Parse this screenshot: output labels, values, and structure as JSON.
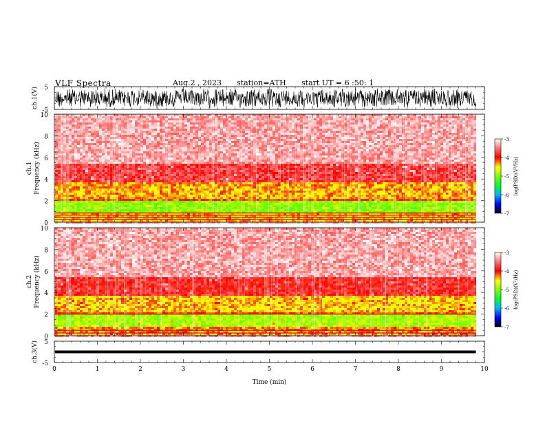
{
  "header": {
    "title": "VLF Spectra",
    "date": "Aug.2 , 2023",
    "station": "station=ATH",
    "start": "start UT =  6 :50: 1"
  },
  "chart_data": [
    {
      "type": "line",
      "name": "ch1-waveform",
      "ylabel": "ch.1(V)",
      "ylim": [
        -5,
        5
      ],
      "yticks": [
        "5",
        "-5"
      ],
      "xlim": [
        0,
        10
      ]
    },
    {
      "type": "heatmap",
      "name": "ch1-spectrogram",
      "ylabel": "ch.1\nFrequency (kHz)",
      "ylabel_lines": [
        "ch.1",
        "Frequency (kHz)"
      ],
      "ylim": [
        0,
        10
      ],
      "yticks": [
        "0",
        "2",
        "4",
        "6",
        "8",
        "10"
      ],
      "xlim": [
        0,
        10
      ],
      "data_end_min": 9.8,
      "colorbar": {
        "label": "log(PSD)(V²/Hz)",
        "range": [
          -7,
          -3
        ],
        "ticks": [
          "-3",
          "-4",
          "-5",
          "-6",
          "-7"
        ]
      },
      "bands": [
        {
          "f0": 0.0,
          "f1": 0.8,
          "level": -4.4
        },
        {
          "f0": 0.8,
          "f1": 1.9,
          "level": -4.95
        },
        {
          "f0": 1.9,
          "f1": 2.2,
          "level": -4.1
        },
        {
          "f0": 2.2,
          "f1": 3.6,
          "level": -4.35
        },
        {
          "f0": 3.6,
          "f1": 5.5,
          "level": -3.75
        },
        {
          "f0": 5.5,
          "f1": 10.0,
          "level": -3.35
        }
      ],
      "lines_khz": [
        0.25,
        0.45,
        0.65,
        0.85
      ]
    },
    {
      "type": "heatmap",
      "name": "ch2-spectrogram",
      "ylabel": "ch.2\nFrequency (kHz)",
      "ylabel_lines": [
        "ch.2",
        "Frequency (kHz)"
      ],
      "ylim": [
        0,
        10
      ],
      "yticks": [
        "0",
        "2",
        "4",
        "6",
        "8",
        "10"
      ],
      "xlim": [
        0,
        10
      ],
      "data_end_min": 9.8,
      "colorbar": {
        "label": "log(PSD)(V²/Hz)",
        "range": [
          -7,
          -3
        ],
        "ticks": [
          "-3",
          "-4",
          "-5",
          "-6",
          "-7"
        ]
      },
      "bands": [
        {
          "f0": 0.0,
          "f1": 0.8,
          "level": -4.3
        },
        {
          "f0": 0.8,
          "f1": 1.9,
          "level": -4.85
        },
        {
          "f0": 1.9,
          "f1": 2.2,
          "level": -4.1
        },
        {
          "f0": 2.2,
          "f1": 3.6,
          "level": -4.4
        },
        {
          "f0": 3.6,
          "f1": 5.5,
          "level": -3.85
        },
        {
          "f0": 5.5,
          "f1": 10.0,
          "level": -3.35
        }
      ],
      "lines_khz": [
        0.25,
        0.5,
        2.0
      ]
    },
    {
      "type": "line",
      "name": "ch3-waveform",
      "ylabel": "ch.3(V)",
      "ylim": [
        -5,
        5
      ],
      "yticks": [
        "5",
        "-5"
      ],
      "xlim": [
        0,
        10
      ],
      "xlabel": "Time (min)",
      "xticks": [
        "0",
        "1",
        "2",
        "3",
        "4",
        "5",
        "6",
        "7",
        "8",
        "9",
        "10"
      ],
      "level_v": 0.0
    }
  ]
}
